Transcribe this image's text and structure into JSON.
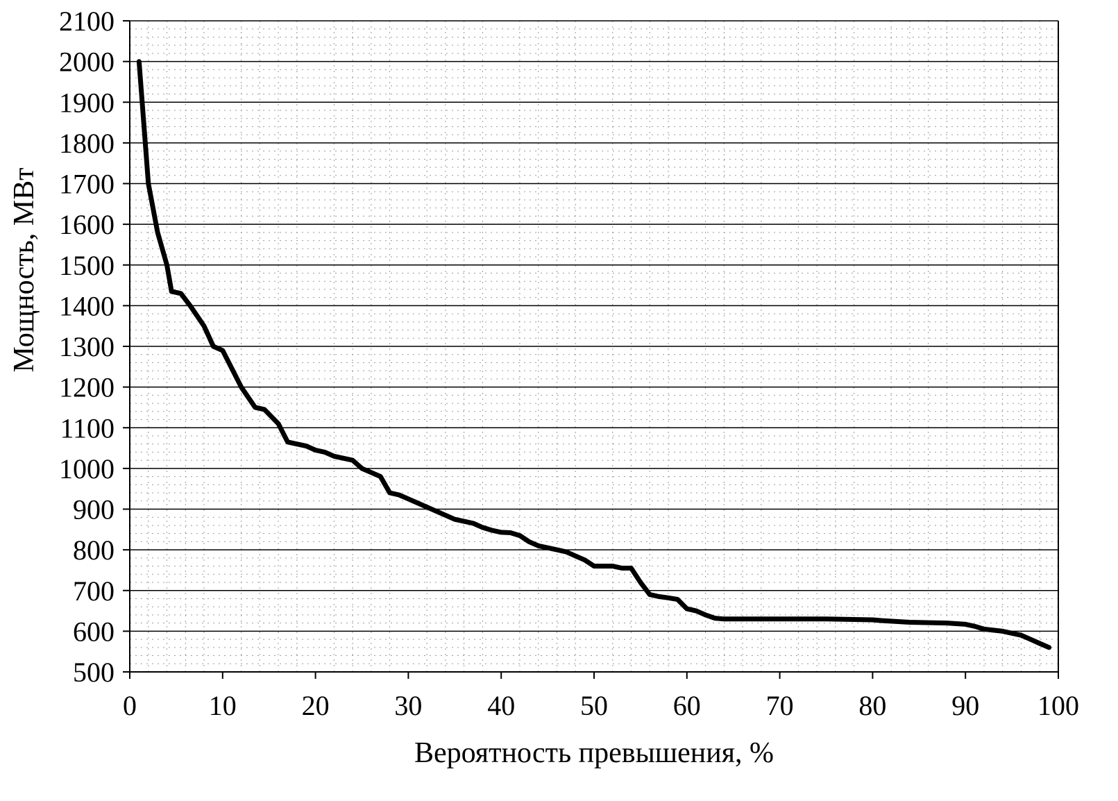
{
  "chart_data": {
    "type": "line",
    "xlabel": "Вероятность превышения, %",
    "ylabel": "Мощность, МВт",
    "xlim": [
      0,
      100
    ],
    "ylim": [
      500,
      2100
    ],
    "x_ticks": [
      0,
      10,
      20,
      30,
      40,
      50,
      60,
      70,
      80,
      90,
      100
    ],
    "y_ticks": [
      500,
      600,
      700,
      800,
      900,
      1000,
      1100,
      1200,
      1300,
      1400,
      1500,
      1600,
      1700,
      1800,
      1900,
      2000,
      2100
    ],
    "grid": true,
    "line_color": "#000000",
    "series": [
      {
        "x": [
          1,
          1.5,
          2,
          3,
          4,
          4.5,
          5.5,
          6.5,
          8,
          9,
          10,
          11,
          12,
          13.5,
          14.5,
          16,
          17,
          18,
          19,
          20,
          21,
          22,
          23,
          24,
          25,
          26,
          27,
          28,
          29,
          30,
          31,
          32,
          33,
          34,
          35,
          36,
          37,
          38,
          39,
          40,
          41,
          42,
          43,
          44,
          45,
          46,
          47,
          48,
          49,
          50,
          51,
          52,
          53,
          54,
          55,
          56,
          57,
          58,
          59,
          60,
          61,
          62,
          63,
          64,
          65,
          67,
          70,
          75,
          80,
          81,
          84,
          88,
          90,
          91,
          92,
          94,
          96,
          97,
          98,
          99
        ],
        "y": [
          2000,
          1850,
          1700,
          1580,
          1500,
          1435,
          1430,
          1400,
          1350,
          1300,
          1290,
          1245,
          1200,
          1150,
          1145,
          1110,
          1065,
          1060,
          1055,
          1045,
          1040,
          1030,
          1025,
          1020,
          1000,
          990,
          980,
          940,
          935,
          925,
          915,
          905,
          895,
          885,
          875,
          870,
          865,
          855,
          848,
          843,
          842,
          835,
          820,
          810,
          805,
          800,
          795,
          785,
          775,
          760,
          760,
          760,
          755,
          755,
          720,
          690,
          685,
          682,
          678,
          655,
          650,
          640,
          632,
          630,
          630,
          630,
          630,
          630,
          628,
          626,
          622,
          620,
          617,
          612,
          605,
          600,
          590,
          580,
          570,
          560
        ]
      }
    ]
  }
}
